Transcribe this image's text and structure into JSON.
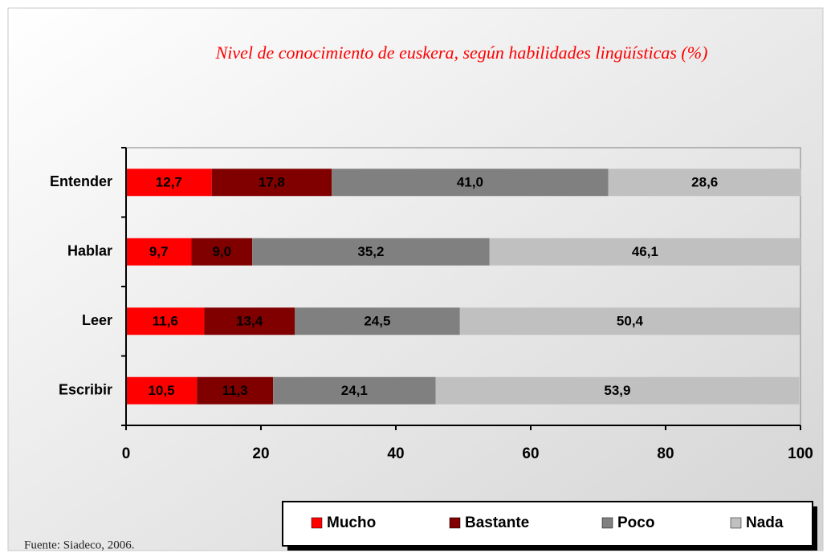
{
  "chart_data": {
    "type": "bar",
    "orientation": "horizontal",
    "stacked": true,
    "title": "Nivel de conocimiento de euskera, según habilidades lingüísticas  (%)",
    "source": "Fuente: Siadeco, 2006.",
    "categories": [
      "Entender",
      "Hablar",
      "Leer",
      "Escribir"
    ],
    "series": [
      {
        "name": "Mucho",
        "color": "#ff0000",
        "values": [
          12.7,
          9.7,
          11.6,
          10.5
        ],
        "value_labels": [
          "12,7",
          "9,7",
          "11,6",
          "10,5"
        ]
      },
      {
        "name": "Bastante",
        "color": "#800000",
        "values": [
          17.8,
          9.0,
          13.4,
          11.3
        ],
        "value_labels": [
          "17,8",
          "9,0",
          "13,4",
          "11,3"
        ]
      },
      {
        "name": "Poco",
        "color": "#808080",
        "values": [
          41.0,
          35.2,
          24.5,
          24.1
        ],
        "value_labels": [
          "41,0",
          "35,2",
          "24,5",
          "24,1"
        ]
      },
      {
        "name": "Nada",
        "color": "#c0c0c0",
        "values": [
          28.6,
          46.1,
          50.4,
          53.9
        ],
        "value_labels": [
          "28,6",
          "46,1",
          "50,4",
          "53,9"
        ]
      }
    ],
    "xlim": [
      0,
      100
    ],
    "xticks": [
      0,
      20,
      40,
      60,
      80,
      100
    ],
    "legend": "bottom"
  }
}
